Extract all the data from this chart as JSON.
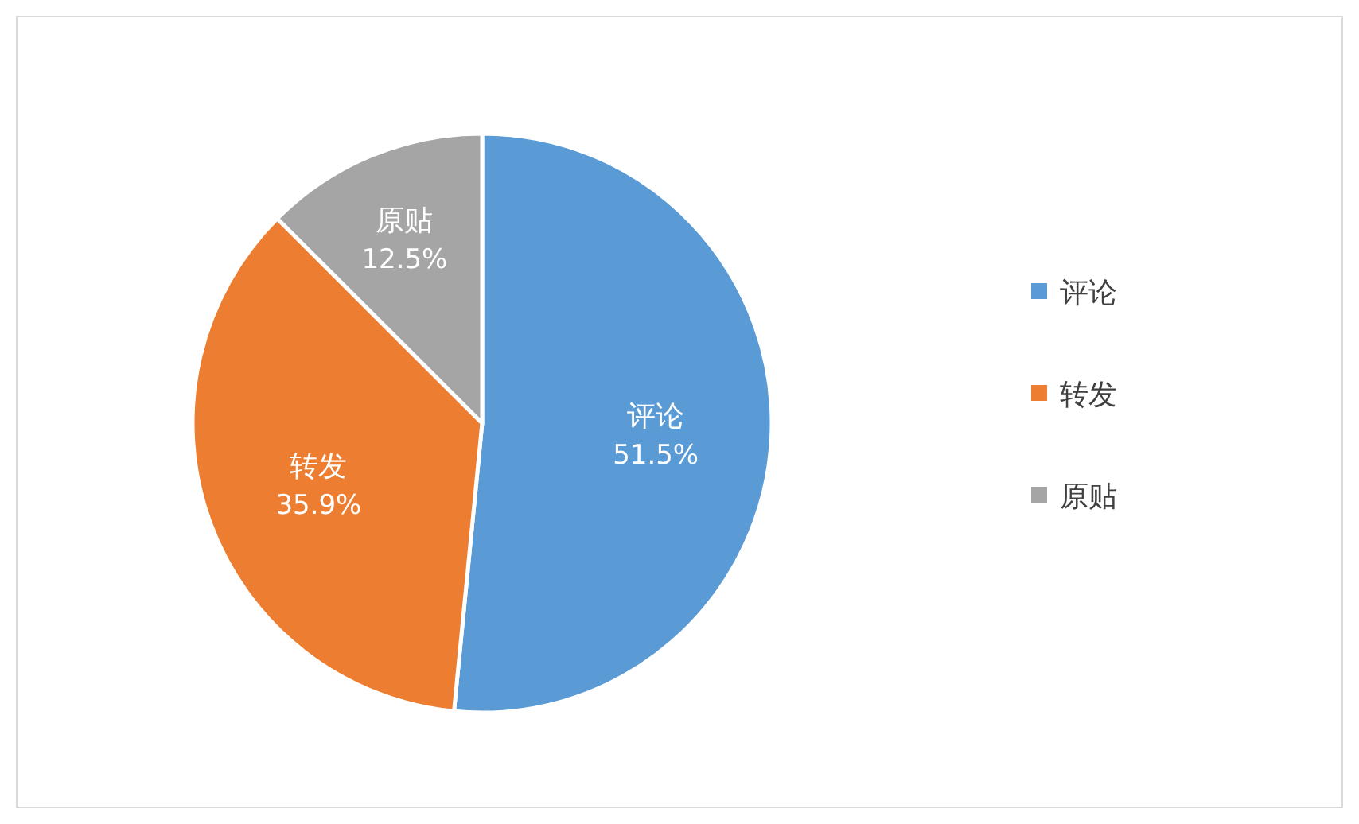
{
  "chart_data": {
    "type": "pie",
    "categories": [
      "评论",
      "转发",
      "原贴"
    ],
    "values": [
      51.5,
      35.9,
      12.5
    ],
    "colors": [
      "#5b9bd5",
      "#ed7d31",
      "#a5a5a5"
    ],
    "value_labels": [
      "51.5%",
      "35.9%",
      "12.5%"
    ],
    "legend": "right"
  }
}
